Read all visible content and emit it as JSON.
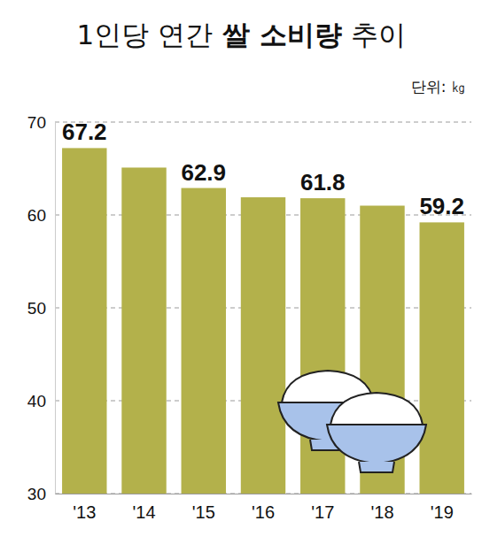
{
  "chart_data": {
    "type": "bar",
    "title": "1인당 연간 쌀 소비량 추이",
    "subtitle": "단위: ㎏",
    "categories": [
      "'13",
      "'14",
      "'15",
      "'16",
      "'17",
      "'18",
      "'19"
    ],
    "values": [
      67.2,
      65.1,
      62.9,
      61.9,
      61.8,
      61.0,
      59.2
    ],
    "value_labels": [
      "67.2",
      null,
      "62.9",
      null,
      "61.8",
      null,
      "59.2"
    ],
    "data_labels": true,
    "color": "#b3b14b",
    "ylim": [
      30,
      70
    ],
    "yticks": [
      30,
      40,
      50,
      60,
      70
    ],
    "grid": true
  }
}
